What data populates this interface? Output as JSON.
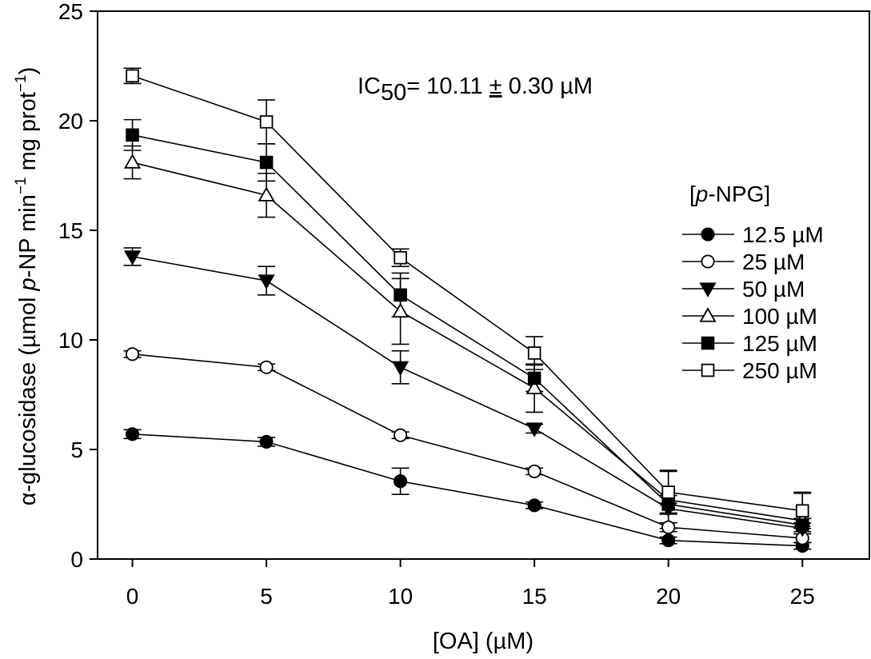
{
  "chart_data": {
    "type": "line",
    "annotation": {
      "prefix": "IC",
      "subscript": "50",
      "value": "= 10.11 ",
      "pm": "±",
      "rest": " 0.30 µM"
    },
    "xlabel": "[OA] (µM)",
    "ylabel": {
      "part1": "α-glucosidase (µmol ",
      "italic": "p",
      "part2": "-NP min",
      "sup1": "−1",
      "part3": " mg prot",
      "sup2": "−1",
      "part4": ")"
    },
    "xlim": [
      -1.3,
      27.5
    ],
    "ylim": [
      0,
      25
    ],
    "xticks": [
      0,
      5,
      10,
      15,
      20,
      25
    ],
    "yticks": [
      0,
      5,
      10,
      15,
      20,
      25
    ],
    "x": [
      0,
      5,
      10,
      15,
      20,
      25
    ],
    "legend": {
      "title_open": "[",
      "title_italic": "p",
      "title_rest": "-NPG]",
      "placement": "right"
    },
    "series": [
      {
        "name": "12.5 µM",
        "marker": "circle",
        "fill": "#000000",
        "values": [
          5.7,
          5.35,
          3.55,
          2.45,
          0.85,
          0.6
        ],
        "errors": [
          0.2,
          0.2,
          0.6,
          0.15,
          0.15,
          0.15
        ]
      },
      {
        "name": "25 µM",
        "marker": "circle",
        "fill": "#ffffff",
        "values": [
          9.35,
          8.75,
          5.65,
          4.0,
          1.45,
          0.95
        ],
        "errors": [
          0.15,
          0.15,
          0.15,
          0.15,
          0.2,
          0.2
        ]
      },
      {
        "name": "50 µM",
        "marker": "triangle-down",
        "fill": "#000000",
        "values": [
          13.8,
          12.7,
          8.75,
          5.95,
          2.3,
          1.4
        ],
        "errors": [
          0.4,
          0.65,
          0.75,
          0.2,
          0.25,
          0.25
        ]
      },
      {
        "name": "100 µM",
        "marker": "triangle-up",
        "fill": "#ffffff",
        "values": [
          18.1,
          16.6,
          11.3,
          7.8,
          2.7,
          1.75
        ],
        "errors": [
          0.75,
          1.0,
          1.5,
          1.1,
          1.3,
          1.3
        ]
      },
      {
        "name": "125 µM",
        "marker": "square",
        "fill": "#000000",
        "values": [
          19.35,
          18.1,
          12.05,
          8.25,
          2.5,
          1.55
        ],
        "errors": [
          0.7,
          0.85,
          1.0,
          0.6,
          0.4,
          0.3
        ]
      },
      {
        "name": "250 µM",
        "marker": "square",
        "fill": "#ffffff",
        "values": [
          22.05,
          19.95,
          13.75,
          9.4,
          3.05,
          2.2
        ],
        "errors": [
          0.35,
          1.0,
          0.4,
          0.75,
          1.0,
          0.8
        ]
      }
    ]
  }
}
